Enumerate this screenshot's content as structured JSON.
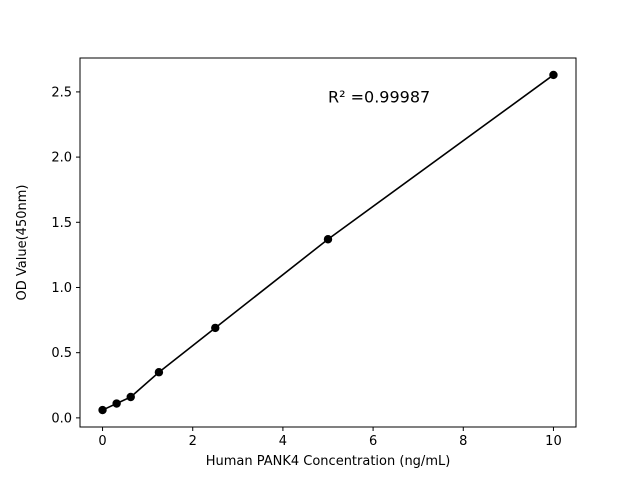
{
  "chart_data": {
    "type": "scatter",
    "title": "",
    "xlabel": "Human PANK4 Concentration (ng/mL)",
    "ylabel": "OD Value(450nm)",
    "annotation": "R² =0.99987",
    "annotation_pos": [
      5.0,
      2.42
    ],
    "x": [
      0,
      0.3125,
      0.625,
      1.25,
      2.5,
      5,
      10
    ],
    "y": [
      0.06,
      0.11,
      0.16,
      0.35,
      0.69,
      1.37,
      2.63
    ],
    "xlim": [
      -0.5,
      10.5
    ],
    "ylim": [
      -0.07,
      2.76
    ],
    "xticks": [
      0,
      2,
      4,
      6,
      8,
      10
    ],
    "yticks": [
      0.0,
      0.5,
      1.0,
      1.5,
      2.0,
      2.5
    ],
    "line_color": "#000000",
    "marker_color": "#000000",
    "axis_color": "#000000",
    "grid": false,
    "legend": null
  }
}
